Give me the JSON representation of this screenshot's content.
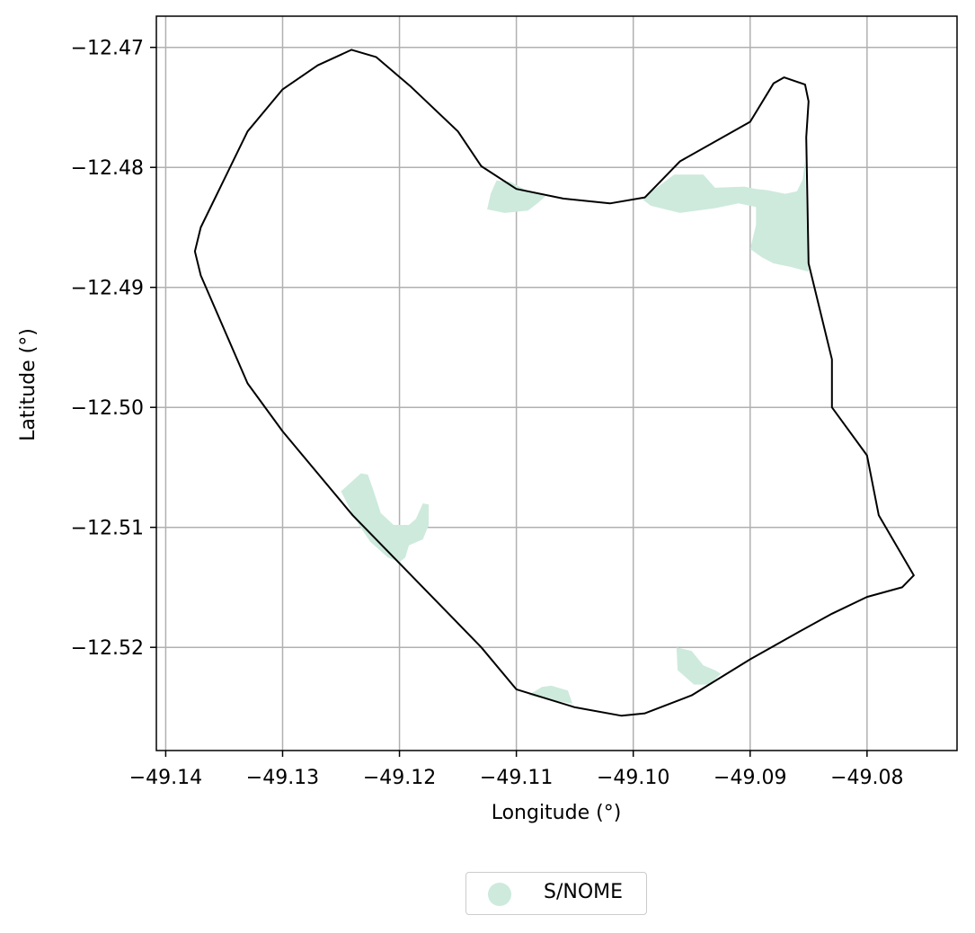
{
  "chart_data": {
    "type": "map",
    "xlabel": "Longitude (°)",
    "ylabel": "Latitude (°)",
    "xlim": [
      -49.1408,
      -49.0723
    ],
    "ylim": [
      -12.5286,
      -12.4674
    ],
    "xticks": [
      -49.14,
      -49.13,
      -49.12,
      -49.11,
      -49.1,
      -49.09,
      -49.08
    ],
    "xtick_labels": [
      "−49.14",
      "−49.13",
      "−49.12",
      "−49.11",
      "−49.10",
      "−49.09",
      "−49.08"
    ],
    "yticks": [
      -12.47,
      -12.48,
      -12.49,
      -12.5,
      -12.51,
      -12.52
    ],
    "ytick_labels": [
      "−12.47",
      "−12.48",
      "−12.49",
      "−12.50",
      "−12.51",
      "−12.52"
    ],
    "grid": true,
    "legend": {
      "placement": "bottom-center, below plot",
      "entries": [
        {
          "label": "S/NOME",
          "color": "#cdeadd"
        }
      ]
    },
    "boundary": {
      "color": "#000000",
      "points": [
        [
          -49.1241,
          -12.4702
        ],
        [
          -49.122,
          -12.4708
        ],
        [
          -49.119,
          -12.4733
        ],
        [
          -49.115,
          -12.477
        ],
        [
          -49.113,
          -12.4799
        ],
        [
          -49.11,
          -12.4818
        ],
        [
          -49.106,
          -12.4826
        ],
        [
          -49.102,
          -12.483
        ],
        [
          -49.099,
          -12.4825
        ],
        [
          -49.0975,
          -12.481
        ],
        [
          -49.096,
          -12.4795
        ],
        [
          -49.09,
          -12.4762
        ],
        [
          -49.088,
          -12.473
        ],
        [
          -49.0871,
          -12.4725
        ],
        [
          -49.0853,
          -12.4731
        ],
        [
          -49.085,
          -12.4745
        ],
        [
          -49.0852,
          -12.4775
        ],
        [
          -49.085,
          -12.488
        ],
        [
          -49.084,
          -12.492
        ],
        [
          -49.083,
          -12.496
        ],
        [
          -49.083,
          -12.5
        ],
        [
          -49.08,
          -12.504
        ],
        [
          -49.079,
          -12.509
        ],
        [
          -49.076,
          -12.514
        ],
        [
          -49.077,
          -12.515
        ],
        [
          -49.08,
          -12.5158
        ],
        [
          -49.083,
          -12.5172
        ],
        [
          -49.086,
          -12.5188
        ],
        [
          -49.09,
          -12.521
        ],
        [
          -49.095,
          -12.524
        ],
        [
          -49.099,
          -12.5255
        ],
        [
          -49.101,
          -12.5257
        ],
        [
          -49.105,
          -12.525
        ],
        [
          -49.11,
          -12.5235
        ],
        [
          -49.113,
          -12.52
        ],
        [
          -49.118,
          -12.515
        ],
        [
          -49.124,
          -12.509
        ],
        [
          -49.13,
          -12.502
        ],
        [
          -49.133,
          -12.498
        ],
        [
          -49.137,
          -12.489
        ],
        [
          -49.1375,
          -12.487
        ],
        [
          -49.137,
          -12.485
        ],
        [
          -49.133,
          -12.477
        ],
        [
          -49.13,
          -12.4735
        ],
        [
          -49.127,
          -12.4715
        ]
      ]
    },
    "features": [
      {
        "name": "S/NOME",
        "points": [
          [
            -49.1105,
            -12.4812
          ],
          [
            -49.109,
            -12.482
          ],
          [
            -49.1075,
            -12.4824
          ],
          [
            -49.1082,
            -12.483
          ],
          [
            -49.109,
            -12.4836
          ],
          [
            -49.111,
            -12.4838
          ],
          [
            -49.1125,
            -12.4835
          ],
          [
            -49.1122,
            -12.4822
          ],
          [
            -49.1117,
            -12.4811
          ]
        ]
      },
      {
        "name": "S/NOME",
        "points": [
          [
            -49.0965,
            -12.4806
          ],
          [
            -49.094,
            -12.4806
          ],
          [
            -49.093,
            -12.4817
          ],
          [
            -49.0905,
            -12.4816
          ],
          [
            -49.0895,
            -12.4818
          ],
          [
            -49.0885,
            -12.4819
          ],
          [
            -49.087,
            -12.4822
          ],
          [
            -49.086,
            -12.482
          ],
          [
            -49.0855,
            -12.481
          ],
          [
            -49.0853,
            -12.4794
          ],
          [
            -49.0852,
            -12.483
          ],
          [
            -49.085,
            -12.4887
          ],
          [
            -49.0865,
            -12.4883
          ],
          [
            -49.088,
            -12.488
          ],
          [
            -49.089,
            -12.4875
          ],
          [
            -49.09,
            -12.4868
          ],
          [
            -49.0895,
            -12.4848
          ],
          [
            -49.0895,
            -12.4833
          ],
          [
            -49.091,
            -12.483
          ],
          [
            -49.093,
            -12.4834
          ],
          [
            -49.096,
            -12.4838
          ],
          [
            -49.0985,
            -12.4832
          ],
          [
            -49.0993,
            -12.4826
          ],
          [
            -49.098,
            -12.4817
          ]
        ]
      },
      {
        "name": "S/NOME",
        "points": [
          [
            -49.1233,
            -12.5055
          ],
          [
            -49.125,
            -12.507
          ],
          [
            -49.1238,
            -12.5093
          ],
          [
            -49.1225,
            -12.5112
          ],
          [
            -49.121,
            -12.5125
          ],
          [
            -49.12,
            -12.5129
          ],
          [
            -49.1195,
            -12.5125
          ],
          [
            -49.1192,
            -12.5115
          ],
          [
            -49.118,
            -12.511
          ],
          [
            -49.1175,
            -12.5098
          ],
          [
            -49.1175,
            -12.5081
          ],
          [
            -49.118,
            -12.508
          ],
          [
            -49.1186,
            -12.5093
          ],
          [
            -49.1192,
            -12.5098
          ],
          [
            -49.1205,
            -12.5098
          ],
          [
            -49.1216,
            -12.5088
          ],
          [
            -49.1222,
            -12.507
          ],
          [
            -49.1227,
            -12.5056
          ]
        ]
      },
      {
        "name": "S/NOME",
        "points": [
          [
            -49.0963,
            -12.52
          ],
          [
            -49.095,
            -12.5203
          ],
          [
            -49.094,
            -12.5215
          ],
          [
            -49.093,
            -12.5219
          ],
          [
            -49.0925,
            -12.5222
          ],
          [
            -49.0935,
            -12.5231
          ],
          [
            -49.0948,
            -12.5231
          ],
          [
            -49.0962,
            -12.5219
          ]
        ]
      },
      {
        "name": "S/NOME",
        "points": [
          [
            -49.107,
            -12.5232
          ],
          [
            -49.1056,
            -12.5236
          ],
          [
            -49.1052,
            -12.5247
          ],
          [
            -49.107,
            -12.5244
          ],
          [
            -49.109,
            -12.524
          ],
          [
            -49.1078,
            -12.5233
          ]
        ]
      }
    ]
  }
}
